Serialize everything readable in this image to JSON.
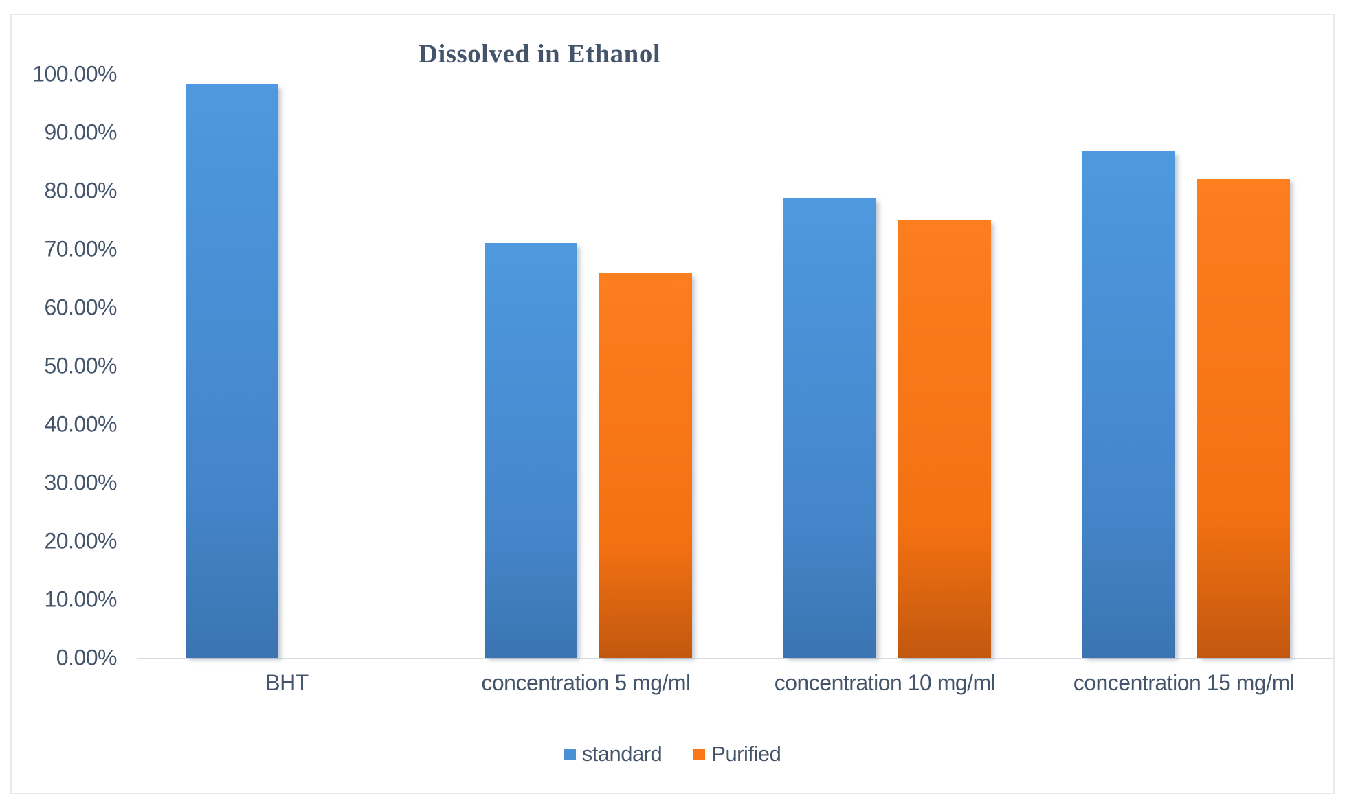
{
  "chart_data": {
    "type": "bar",
    "title": "Dissolved in Ethanol",
    "categories": [
      "BHT",
      "concentration 5 mg/ml",
      "concentration 10 mg/ml",
      "concentration 15 mg/ml"
    ],
    "series": [
      {
        "name": "standard",
        "color": "#4a90d5",
        "values": [
          98.2,
          71.1,
          78.8,
          86.8
        ]
      },
      {
        "name": "Purified",
        "color": "#fb7616",
        "values": [
          null,
          65.9,
          75.1,
          82.1
        ]
      }
    ],
    "xlabel": "",
    "ylabel": "",
    "ylim": [
      0,
      100
    ],
    "ytick_labels": [
      "0.00%",
      "10.00%",
      "20.00%",
      "30.00%",
      "40.00%",
      "50.00%",
      "60.00%",
      "70.00%",
      "80.00%",
      "90.00%",
      "100.00%"
    ],
    "grid": false,
    "legend_position": "bottom",
    "axis_text_color": "#44546a",
    "title_color": "#44546a",
    "baseline_color": "#d8dbe1"
  }
}
